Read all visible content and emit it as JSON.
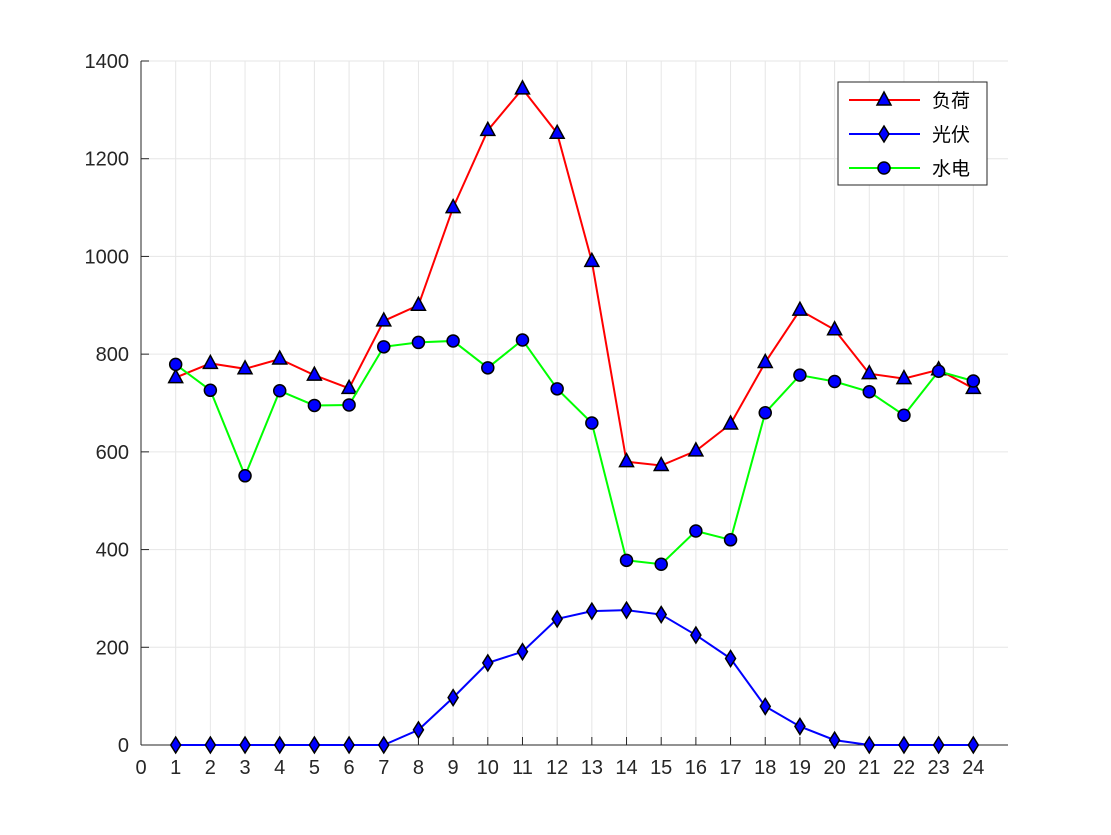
{
  "chart_data": {
    "type": "line",
    "x": [
      1,
      2,
      3,
      4,
      5,
      6,
      7,
      8,
      9,
      10,
      11,
      12,
      13,
      14,
      15,
      16,
      17,
      18,
      19,
      20,
      21,
      22,
      23,
      24
    ],
    "xlim": [
      0,
      25
    ],
    "xticks": [
      0,
      1,
      2,
      3,
      4,
      5,
      6,
      7,
      8,
      9,
      10,
      11,
      12,
      13,
      14,
      15,
      16,
      17,
      18,
      19,
      20,
      21,
      22,
      23,
      24
    ],
    "ylim": [
      0,
      1400
    ],
    "yticks": [
      0,
      200,
      400,
      600,
      800,
      1000,
      1200,
      1400
    ],
    "grid": true,
    "legend_position": "top-right",
    "series": [
      {
        "name": "负荷",
        "color": "#ff0000",
        "marker": "triangle",
        "marker_fill": "#0000ff",
        "values": [
          752,
          781,
          770,
          790,
          757,
          730,
          868,
          900,
          1100,
          1258,
          1343,
          1252,
          990,
          580,
          572,
          602,
          657,
          783,
          890,
          850,
          760,
          750,
          768,
          730
        ]
      },
      {
        "name": "光伏",
        "color": "#0000ff",
        "marker": "diamond",
        "marker_fill": "#0000ff",
        "values": [
          0,
          0,
          0,
          0,
          0,
          0,
          0,
          31,
          97,
          168,
          191,
          258,
          274,
          276,
          267,
          225,
          177,
          79,
          38,
          10,
          0,
          0,
          0,
          0
        ]
      },
      {
        "name": "水电",
        "color": "#00ff00",
        "marker": "circle",
        "marker_fill": "#0000ff",
        "values": [
          779,
          726,
          551,
          725,
          695,
          696,
          815,
          824,
          827,
          772,
          829,
          729,
          659,
          378,
          370,
          438,
          420,
          680,
          757,
          744,
          723,
          675,
          765,
          745
        ]
      }
    ]
  }
}
